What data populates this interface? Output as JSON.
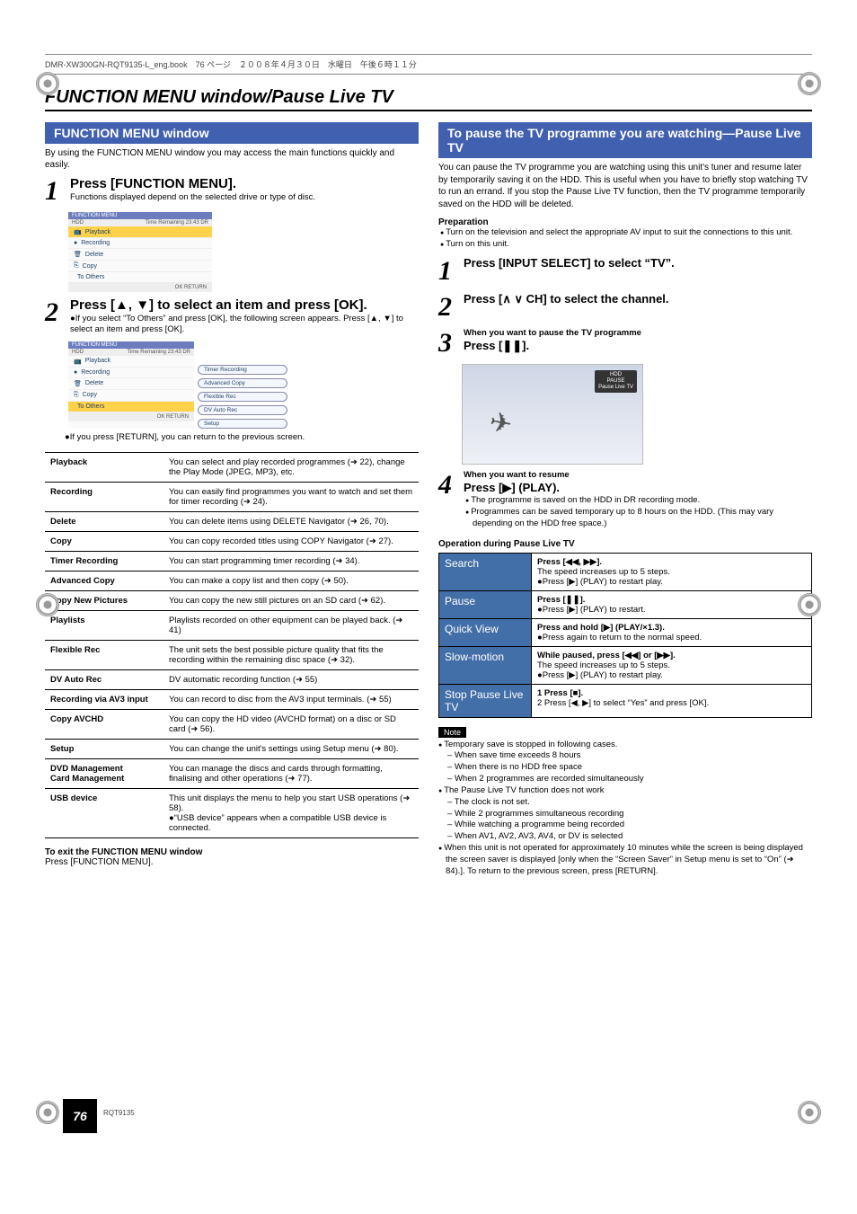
{
  "header_filename": "DMR-XW300GN-RQT9135-L_eng.book　76 ページ　２００８年４月３０日　水曜日　午後６時１１分",
  "main_title": "FUNCTION MENU window/Pause Live TV",
  "left": {
    "section_bar": "FUNCTION MENU window",
    "intro": "By using the FUNCTION MENU window you may access the main functions quickly and easily.",
    "step1_heading": "Press [FUNCTION MENU].",
    "step1_note": "Functions displayed depend on the selected drive or type of disc.",
    "step2_heading": "Press [▲, ▼] to select an item and press [OK].",
    "step2_note1": "●If you select “To Others” and press [OK], the following screen appears. Press [▲, ▼] to select an item and press [OK].",
    "step2_note2": "●If you press [RETURN], you can return to the previous screen.",
    "menu": {
      "title": "FUNCTION MENU",
      "drive": "HDD",
      "remain": "Time Remaining   23:43 DR",
      "items": [
        "Playback",
        "Recording",
        "Delete",
        "Copy",
        "To Others"
      ],
      "footer": "OK  RETURN"
    },
    "menu2_right": [
      "Timer Recording",
      "Advanced Copy",
      "Flexible Rec",
      "DV Auto Rec",
      "Setup"
    ],
    "func_rows": [
      [
        "Playback",
        "You can select and play recorded programmes (➜ 22), change the Play Mode (JPEG, MP3), etc."
      ],
      [
        "Recording",
        "You can easily find programmes you want to watch and set them for timer recording (➜ 24)."
      ],
      [
        "Delete",
        "You can delete items using DELETE Navigator (➜ 26, 70)."
      ],
      [
        "Copy",
        "You can copy recorded titles using COPY Navigator (➜ 27)."
      ],
      [
        "Timer Recording",
        "You can start programming timer recording (➜ 34)."
      ],
      [
        "Advanced Copy",
        "You can make a copy list and then copy (➜ 50)."
      ],
      [
        "Copy New Pictures",
        "You can copy the new still pictures on an SD card (➜ 62)."
      ],
      [
        "Playlists",
        "Playlists recorded on other equipment can be played back. (➜ 41)"
      ],
      [
        "Flexible Rec",
        "The unit sets the best possible picture quality that fits the recording within the remaining disc space (➜ 32)."
      ],
      [
        "DV Auto Rec",
        "DV automatic recording function (➜ 55)"
      ],
      [
        "Recording via AV3 input",
        "You can record to disc from the AV3 input terminals. (➜ 55)"
      ],
      [
        "Copy AVCHD",
        "You can copy the HD video (AVCHD format) on a disc or SD card (➜ 56)."
      ],
      [
        "Setup",
        "You can change the unit's settings using Setup menu (➜ 80)."
      ],
      [
        "DVD Management\nCard Management",
        "You can manage the discs and cards through formatting, finalising and other operations (➜ 77)."
      ],
      [
        "USB device",
        "This unit displays the menu to help you start USB operations (➜ 58).\n●“USB device” appears when a compatible USB device is connected."
      ]
    ],
    "exit_bold": "To exit the FUNCTION MENU window",
    "exit_text": "Press [FUNCTION MENU]."
  },
  "right": {
    "section_bar": "To pause the TV programme you are watching—Pause Live TV",
    "intro": "You can pause the TV programme you are watching using this unit's tuner and resume later by temporarily saving it on the HDD. This is useful when you have to briefly stop watching TV to run an errand. If you stop the Pause Live TV function, then the TV programme temporarily saved on the HDD will be deleted.",
    "prep_h": "Preparation",
    "prep_bullets": [
      "Turn on the television and select the appropriate AV input to suit the connections to this unit.",
      "Turn on this unit."
    ],
    "step1": "Press [INPUT SELECT] to select “TV”.",
    "step2": "Press [∧ ∨ CH] to select the channel.",
    "step3_pre": "When you want to pause the TV programme",
    "step3": "Press [❚❚].",
    "tv_badge": "HDD\nPAUSE\nPause Live TV",
    "step4_pre": "When you want to resume",
    "step4": "Press [▶] (PLAY).",
    "step4_bul": [
      "The programme is saved on the HDD in DR recording mode.",
      "Programmes can be saved temporary up to 8 hours on the HDD. (This may vary depending on the HDD free space.)"
    ],
    "op_h": "Operation during Pause Live TV",
    "op_rows": [
      [
        "Search",
        "Press [◀◀, ▶▶].\nThe speed increases up to 5 steps.\n●Press [▶] (PLAY) to restart play."
      ],
      [
        "Pause",
        "Press [❚❚].\n●Press [▶] (PLAY) to restart."
      ],
      [
        "Quick View",
        "Press and hold [▶] (PLAY/×1.3).\n●Press again to return to the normal speed."
      ],
      [
        "Slow-motion",
        "While paused, press [◀◀] or [▶▶].\nThe speed increases up to 5 steps.\n●Press [▶] (PLAY) to restart play."
      ],
      [
        "Stop Pause Live TV",
        "1  Press [■].\n2  Press [◀, ▶] to select “Yes” and press [OK]."
      ]
    ],
    "note_label": "Note",
    "notes": {
      "lines": [
        {
          "t": "li",
          "v": "Temporary save is stopped in following cases."
        },
        {
          "t": "sub",
          "v": "When save time exceeds 8 hours"
        },
        {
          "t": "sub",
          "v": "When there is no HDD free space"
        },
        {
          "t": "sub",
          "v": "When 2 programmes are recorded simultaneously"
        },
        {
          "t": "li",
          "v": "The Pause Live TV function does not work"
        },
        {
          "t": "sub",
          "v": "The clock is not set."
        },
        {
          "t": "sub",
          "v": "While 2 programmes simultaneous recording"
        },
        {
          "t": "sub",
          "v": "While watching a programme being recorded"
        },
        {
          "t": "sub",
          "v": "When AV1, AV2, AV3, AV4, or DV is selected"
        },
        {
          "t": "li",
          "v": "When this unit is not operated for approximately 10 minutes while the screen is being displayed the screen saver is displayed [only when the “Screen Saver” in Setup menu is set to “On” (➜ 84).]. To return to the previous screen, press [RETURN]."
        }
      ]
    }
  },
  "page_number": "76",
  "rqt": "RQT9135"
}
